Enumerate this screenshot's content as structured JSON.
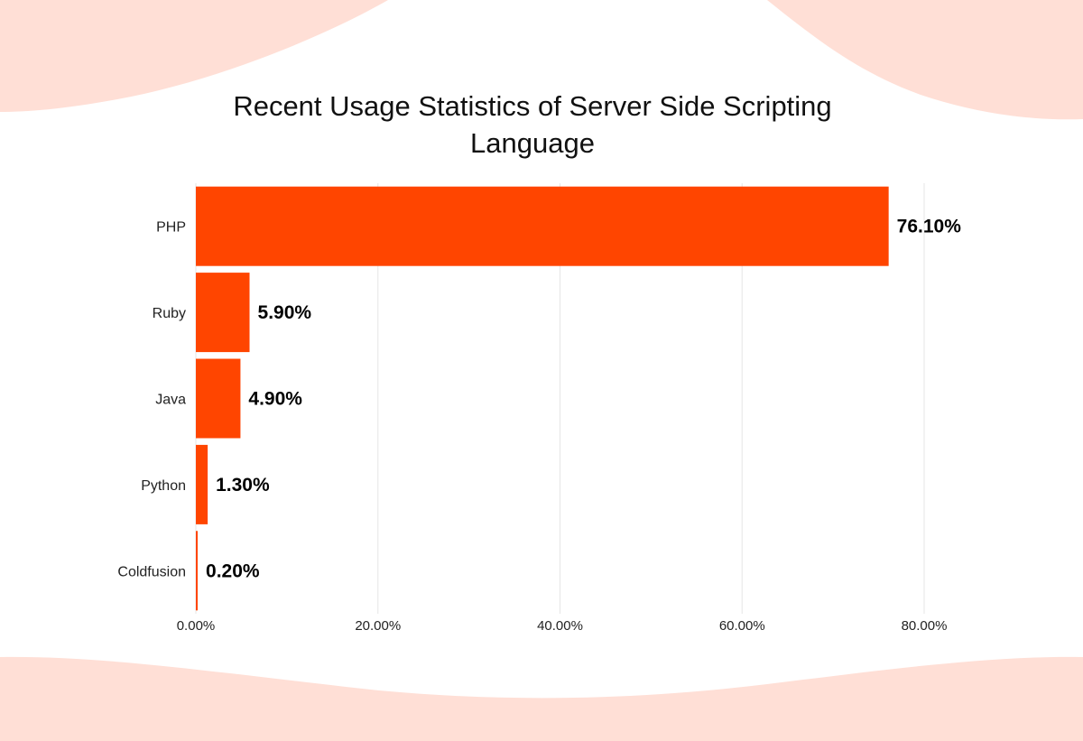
{
  "chart_data": {
    "type": "bar",
    "orientation": "horizontal",
    "title": "Recent Usage Statistics of Server Side Scripting Language",
    "categories": [
      "PHP",
      "Ruby",
      "Java",
      "Python",
      "Coldfusion"
    ],
    "values": [
      76.1,
      5.9,
      4.9,
      1.3,
      0.2
    ],
    "value_labels": [
      "76.10%",
      "5.90%",
      "4.90%",
      "1.30%",
      "0.20%"
    ],
    "xlim": [
      0,
      80
    ],
    "xticks": [
      0,
      20,
      40,
      60,
      80
    ],
    "xtick_labels": [
      "0.00%",
      "20.00%",
      "40.00%",
      "60.00%",
      "80.00%"
    ],
    "xlabel": "",
    "ylabel": "",
    "grid": "vertical",
    "legend": "none"
  },
  "colors": {
    "bar": "#FF4500",
    "background_wave": "#FFDFD6",
    "gridline": "#E6E6E6"
  }
}
